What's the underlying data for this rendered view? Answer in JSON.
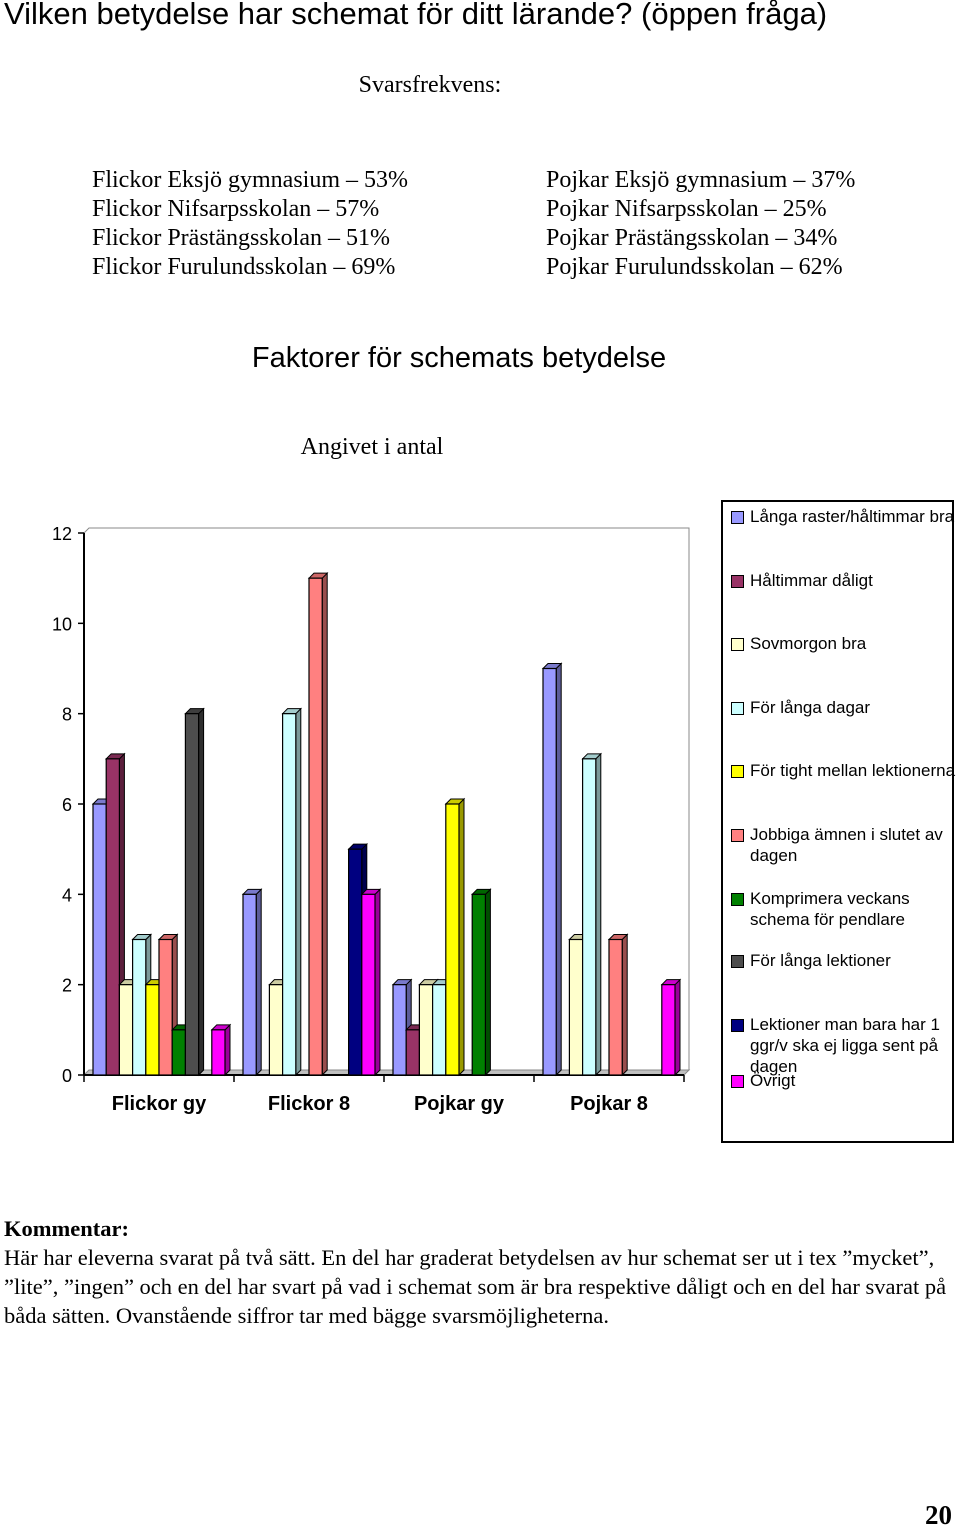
{
  "heading": "Vilken betydelse har schemat för ditt lärande? (öppen fråga)",
  "response_rate": {
    "title": "Svarsfrekvens:",
    "girls": [
      "Flickor Eksjö gymnasium – 53%",
      "Flickor Nifsarpsskolan – 57%",
      "Flickor Prästängsskolan – 51%",
      "Flickor Furulundsskolan – 69%"
    ],
    "boys": [
      "Pojkar Eksjö gymnasium – 37%",
      "Pojkar Nifsarpsskolan – 25%",
      "Pojkar Prästängsskolan – 34%",
      "Pojkar Furulundsskolan – 62%"
    ]
  },
  "chart_data": {
    "type": "bar",
    "title": "Faktorer för schemats betydelse",
    "subtitle": "Angivet i antal",
    "categories": [
      "Flickor gy",
      "Flickor 8",
      "Pojkar gy",
      "Pojkar 8"
    ],
    "ylim": [
      0,
      12
    ],
    "yticks": [
      "0",
      "2",
      "4",
      "6",
      "8",
      "10",
      "12"
    ],
    "legend_position": "right",
    "series": [
      {
        "name": "Långa raster/håltimmar bra",
        "color": "#9999ff",
        "values": [
          6,
          4,
          2,
          9
        ]
      },
      {
        "name": "Håltimmar dåligt",
        "color": "#993366",
        "values": [
          7,
          0,
          1,
          0
        ]
      },
      {
        "name": "Sovmorgon bra",
        "color": "#ffffcc",
        "values": [
          2,
          2,
          2,
          3
        ]
      },
      {
        "name": "För långa dagar",
        "color": "#ccffff",
        "values": [
          3,
          8,
          2,
          7
        ]
      },
      {
        "name": "För tight mellan lektionerna",
        "color": "#ffff00",
        "values": [
          2,
          0,
          6,
          0
        ]
      },
      {
        "name": "Jobbiga ämnen i slutet av dagen",
        "color": "#ff8080",
        "values": [
          3,
          11,
          0,
          3
        ]
      },
      {
        "name": "Komprimera veckans schema för pendlare",
        "color": "#008000",
        "values": [
          1,
          0,
          4,
          0
        ]
      },
      {
        "name": "För långa lektioner",
        "color": "#4d4d4d",
        "values": [
          8,
          0,
          0,
          0
        ]
      },
      {
        "name": "Lektioner man bara har 1 ggr/v ska ej ligga sent på dagen",
        "color": "#000080",
        "values": [
          0,
          5,
          0,
          0
        ]
      },
      {
        "name": "Övrigt",
        "color": "#ff00ff",
        "values": [
          1,
          4,
          0,
          2
        ]
      }
    ]
  },
  "comment": {
    "title": "Kommentar:",
    "body": "Här har eleverna svarat på två sätt. En del har graderat betydelsen av hur schemat ser ut i tex ”mycket”, ”lite”, ”ingen” och en del har svart på vad i schemat som är bra respektive dåligt och en del har svarat på båda sätten. Ovanstående siffror tar med bägge svarsmöjligheterna."
  },
  "page_number": "20"
}
